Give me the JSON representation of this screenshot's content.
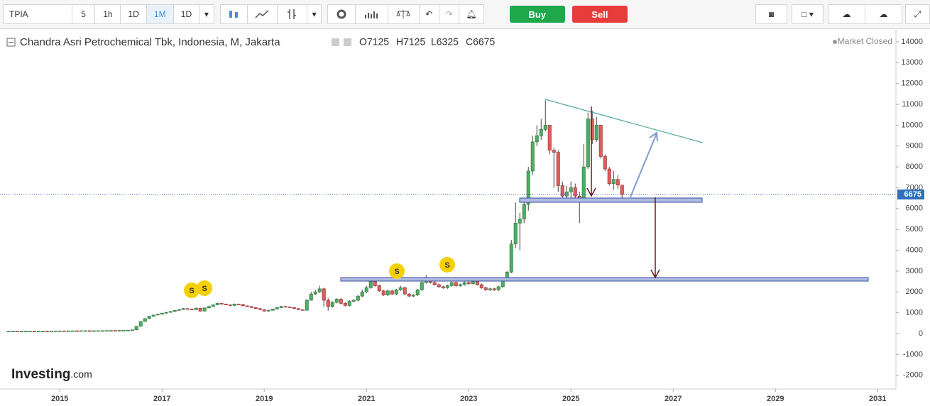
{
  "ui": {
    "symbol": "TPIA",
    "intervals": [
      "5",
      "1h",
      "1D",
      "1M",
      "1D"
    ],
    "buy": "Buy",
    "sell": "Sell",
    "status": "Market Closed",
    "ohlc_header": [
      "O7125",
      "H7125",
      "L6325",
      "C6675"
    ],
    "logo_main": "Investing",
    "logo_suffix": ".com",
    "dividend_label": "S"
  },
  "chart_data": {
    "type": "candlestick",
    "title": "Chandra Asri Petrochemical Tbk, Indonesia, M, Jakarta",
    "x": [
      "2014-01",
      "2014-02",
      "2014-03",
      "2014-04",
      "2014-05",
      "2014-06",
      "2014-07",
      "2014-08",
      "2014-09",
      "2014-10",
      "2014-11",
      "2014-12",
      "2015-01",
      "2015-02",
      "2015-03",
      "2015-04",
      "2015-05",
      "2015-06",
      "2015-07",
      "2015-08",
      "2015-09",
      "2015-10",
      "2015-11",
      "2015-12",
      "2016-01",
      "2016-02",
      "2016-03",
      "2016-04",
      "2016-05",
      "2016-06",
      "2016-07",
      "2016-08",
      "2016-09",
      "2016-10",
      "2016-11",
      "2016-12",
      "2017-01",
      "2017-02",
      "2017-03",
      "2017-04",
      "2017-05",
      "2017-06",
      "2017-07",
      "2017-08",
      "2017-09",
      "2017-10",
      "2017-11",
      "2017-12",
      "2018-01",
      "2018-02",
      "2018-03",
      "2018-04",
      "2018-05",
      "2018-06",
      "2018-07",
      "2018-08",
      "2018-09",
      "2018-10",
      "2018-11",
      "2018-12",
      "2019-01",
      "2019-02",
      "2019-03",
      "2019-04",
      "2019-05",
      "2019-06",
      "2019-07",
      "2019-08",
      "2019-09",
      "2019-10",
      "2019-11",
      "2019-12",
      "2020-01",
      "2020-02",
      "2020-03",
      "2020-04",
      "2020-05",
      "2020-06",
      "2020-07",
      "2020-08",
      "2020-09",
      "2020-10",
      "2020-11",
      "2020-12",
      "2021-01",
      "2021-02",
      "2021-03",
      "2021-04",
      "2021-05",
      "2021-06",
      "2021-07",
      "2021-08",
      "2021-09",
      "2021-10",
      "2021-11",
      "2021-12",
      "2022-01",
      "2022-02",
      "2022-03",
      "2022-04",
      "2022-05",
      "2022-06",
      "2022-07",
      "2022-08",
      "2022-09",
      "2022-10",
      "2022-11",
      "2022-12",
      "2023-01",
      "2023-02",
      "2023-03",
      "2023-04",
      "2023-05",
      "2023-06",
      "2023-07",
      "2023-08",
      "2023-09",
      "2023-10",
      "2023-11",
      "2023-12",
      "2024-01",
      "2024-02",
      "2024-03",
      "2024-04",
      "2024-05",
      "2024-06",
      "2024-07",
      "2024-08",
      "2024-09",
      "2024-10",
      "2024-11",
      "2024-12",
      "2025-01",
      "2025-02",
      "2025-03",
      "2025-04",
      "2025-05",
      "2025-06",
      "2025-07",
      "2025-08",
      "2025-09",
      "2025-10",
      "2025-11",
      "2025-12",
      "2026-01"
    ],
    "open": [
      108,
      110,
      115,
      112,
      118,
      120,
      122,
      118,
      121,
      125,
      123,
      126,
      128,
      130,
      128,
      132,
      135,
      133,
      138,
      140,
      136,
      138,
      140,
      142,
      145,
      150,
      148,
      155,
      160,
      165,
      180,
      350,
      580,
      720,
      830,
      890,
      930,
      980,
      1020,
      1060,
      1110,
      1150,
      1200,
      1180,
      1150,
      1220,
      1080,
      1230,
      1300,
      1380,
      1450,
      1420,
      1380,
      1350,
      1420,
      1400,
      1330,
      1300,
      1250,
      1200,
      1150,
      1080,
      1120,
      1180,
      1250,
      1300,
      1280,
      1250,
      1200,
      1150,
      1120,
      1600,
      1900,
      2000,
      2150,
      1600,
      1300,
      1500,
      1650,
      1450,
      1350,
      1550,
      1600,
      1800,
      2000,
      2200,
      2500,
      2300,
      2050,
      1850,
      2050,
      1900,
      2100,
      2200,
      1900,
      1800,
      1850,
      2100,
      2450,
      2600,
      2450,
      2350,
      2250,
      2200,
      2300,
      2450,
      2300,
      2350,
      2450,
      2400,
      2500,
      2350,
      2200,
      2100,
      2150,
      2100,
      2250,
      2600,
      2950,
      4300,
      5300,
      5500,
      6200,
      7800,
      9200,
      9500,
      9800,
      10000,
      8800,
      8700,
      7100,
      6600,
      6800,
      7000,
      6600,
      6400,
      8000,
      10300,
      9300,
      10000,
      8500,
      7900,
      7200,
      7400,
      7125
    ],
    "high": [
      112,
      117,
      116,
      120,
      122,
      124,
      123,
      123,
      127,
      126,
      128,
      130,
      132,
      132,
      134,
      137,
      137,
      140,
      142,
      141,
      140,
      142,
      144,
      147,
      152,
      153,
      157,
      162,
      168,
      185,
      370,
      600,
      740,
      850,
      910,
      950,
      1000,
      1040,
      1080,
      1130,
      1170,
      1230,
      1220,
      1200,
      1250,
      1240,
      1250,
      1340,
      1400,
      1480,
      1470,
      1440,
      1400,
      1440,
      1440,
      1420,
      1350,
      1320,
      1270,
      1220,
      1170,
      1140,
      1200,
      1280,
      1330,
      1320,
      1300,
      1270,
      1220,
      1170,
      1650,
      2000,
      2100,
      2300,
      2200,
      1700,
      1550,
      1700,
      1700,
      1500,
      1600,
      1650,
      1850,
      2100,
      2300,
      2650,
      2600,
      2350,
      2100,
      2100,
      2100,
      2150,
      2300,
      2250,
      1950,
      1900,
      2150,
      2500,
      2800,
      2650,
      2500,
      2400,
      2300,
      2350,
      2500,
      2500,
      2400,
      2500,
      2500,
      2550,
      2550,
      2400,
      2250,
      2200,
      2200,
      2300,
      2700,
      3000,
      4500,
      6300,
      5800,
      6500,
      8000,
      9500,
      10000,
      10300,
      11200,
      10000,
      8900,
      8800,
      7300,
      7100,
      7300,
      7200,
      6800,
      9100,
      10600,
      10700,
      10400,
      10000,
      8600,
      8000,
      7800,
      7600,
      7125
    ],
    "low": [
      106,
      108,
      110,
      110,
      116,
      118,
      116,
      116,
      119,
      121,
      121,
      124,
      126,
      126,
      126,
      130,
      131,
      131,
      136,
      134,
      134,
      136,
      138,
      140,
      143,
      146,
      146,
      153,
      158,
      163,
      175,
      340,
      570,
      710,
      820,
      880,
      920,
      960,
      1000,
      1050,
      1100,
      1140,
      1160,
      1130,
      1140,
      1060,
      1070,
      1220,
      1290,
      1360,
      1400,
      1370,
      1330,
      1330,
      1390,
      1320,
      1280,
      1240,
      1190,
      1130,
      1060,
      1060,
      1100,
      1160,
      1230,
      1260,
      1230,
      1180,
      1130,
      1100,
      1100,
      1580,
      1850,
      1950,
      1300,
      1100,
      1250,
      1450,
      1400,
      1300,
      1300,
      1500,
      1550,
      1750,
      1950,
      2150,
      2250,
      2000,
      1800,
      1800,
      1850,
      1850,
      2050,
      1850,
      1750,
      1750,
      1800,
      2050,
      2400,
      2400,
      2300,
      2200,
      2150,
      2150,
      2250,
      2250,
      2250,
      2300,
      2350,
      2350,
      2300,
      2150,
      2050,
      2050,
      2050,
      2050,
      2200,
      2550,
      2900,
      4100,
      4000,
      5300,
      5900,
      7600,
      9000,
      9300,
      9700,
      8600,
      7000,
      6800,
      6300,
      6400,
      6500,
      6400,
      5300,
      6300,
      7900,
      9100,
      9200,
      8400,
      7800,
      7100,
      6900,
      6950,
      6325
    ],
    "close": [
      110,
      115,
      112,
      118,
      120,
      122,
      118,
      121,
      125,
      123,
      126,
      128,
      130,
      128,
      132,
      135,
      133,
      138,
      140,
      136,
      138,
      140,
      142,
      145,
      150,
      148,
      155,
      160,
      165,
      180,
      350,
      580,
      720,
      830,
      890,
      930,
      980,
      1020,
      1060,
      1110,
      1150,
      1200,
      1180,
      1150,
      1220,
      1080,
      1230,
      1300,
      1380,
      1450,
      1420,
      1380,
      1350,
      1420,
      1400,
      1330,
      1300,
      1250,
      1200,
      1150,
      1080,
      1120,
      1180,
      1250,
      1300,
      1280,
      1250,
      1200,
      1150,
      1120,
      1600,
      1900,
      2000,
      2150,
      1600,
      1300,
      1500,
      1650,
      1450,
      1350,
      1550,
      1600,
      1800,
      2000,
      2200,
      2500,
      2300,
      2050,
      1850,
      2050,
      1900,
      2100,
      2200,
      1900,
      1800,
      1850,
      2100,
      2450,
      2600,
      2450,
      2350,
      2250,
      2200,
      2300,
      2450,
      2300,
      2350,
      2450,
      2400,
      2500,
      2350,
      2200,
      2100,
      2150,
      2100,
      2250,
      2600,
      2950,
      4300,
      5300,
      5500,
      6200,
      7800,
      9200,
      9500,
      9800,
      10000,
      8800,
      8700,
      7100,
      6600,
      6800,
      7000,
      6600,
      6400,
      8000,
      10300,
      9300,
      10000,
      8500,
      7900,
      7200,
      7400,
      7125,
      6675
    ],
    "up_color": "#4caf62",
    "down_color": "#e05c5c",
    "xlim": [
      2013.9,
      2031.26
    ],
    "xticks": [
      2015,
      2017,
      2019,
      2021,
      2023,
      2025,
      2027,
      2029,
      2031
    ],
    "ylim": [
      -2657,
      14578
    ],
    "yticks": [
      -2000,
      -1000,
      0,
      1000,
      2000,
      3000,
      4000,
      5000,
      6000,
      7000,
      8000,
      9000,
      10000,
      11000,
      12000,
      13000,
      14000
    ],
    "grid": false
  }
}
